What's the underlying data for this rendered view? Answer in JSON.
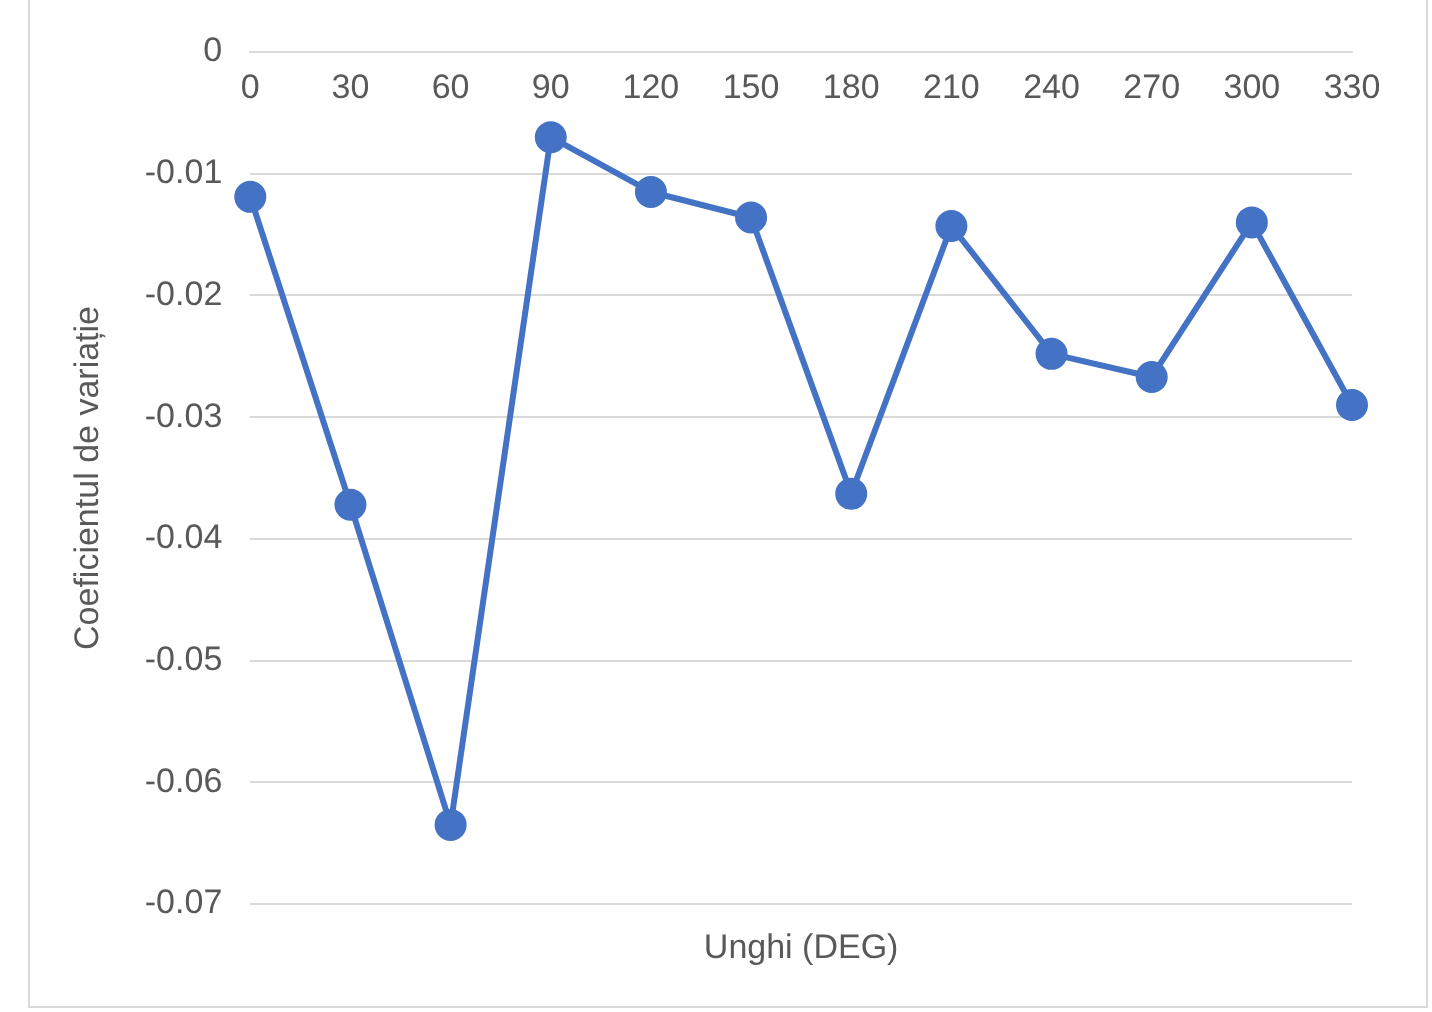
{
  "chart_data": {
    "type": "line",
    "xlabel": "Unghi (DEG)",
    "ylabel": "Coeficientul de variație",
    "categories": [
      "0",
      "30",
      "60",
      "90",
      "120",
      "150",
      "180",
      "210",
      "240",
      "270",
      "300",
      "330"
    ],
    "series": [
      {
        "color": "#4472c4",
        "values": [
          -0.0119,
          -0.0372,
          -0.0635,
          -0.007,
          -0.0115,
          -0.0136,
          -0.0363,
          -0.0143,
          -0.0248,
          -0.0267,
          -0.014,
          -0.029
        ]
      }
    ],
    "ylim": [
      -0.07,
      0
    ],
    "yticks": [
      0,
      -0.01,
      -0.02,
      -0.03,
      -0.04,
      -0.05,
      -0.06,
      -0.07
    ],
    "grid": "y",
    "legend": false,
    "marker": "circle",
    "line_style": "solid"
  }
}
